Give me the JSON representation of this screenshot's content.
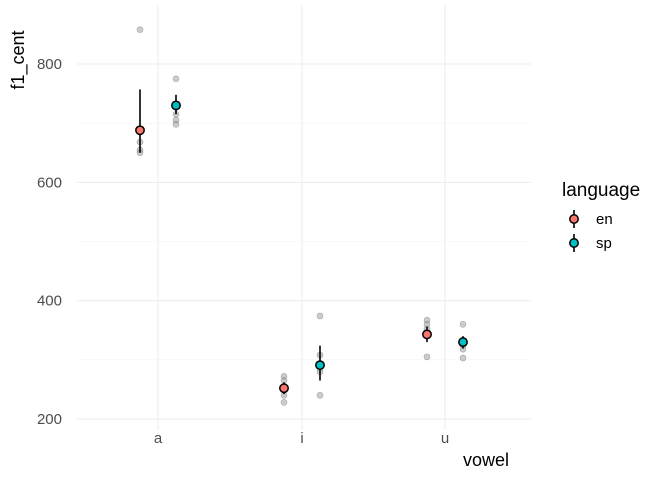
{
  "chart_data": {
    "type": "scatter",
    "title": "",
    "xlabel": "vowel",
    "ylabel": "f1_cent",
    "categories": [
      "a",
      "i",
      "u"
    ],
    "yticks": [
      200,
      400,
      600,
      800
    ],
    "ylim": [
      195,
      890
    ],
    "grid": true,
    "legend": {
      "title": "language",
      "position": "right"
    },
    "series": [
      {
        "name": "en",
        "color": "#F8766D",
        "means": [
          688,
          252,
          343
        ],
        "error_low": [
          650,
          242,
          330
        ],
        "error_high": [
          757,
          262,
          356
        ],
        "raw": [
          [
            858,
            668,
            655,
            650
          ],
          [
            272,
            265,
            255,
            240,
            228
          ],
          [
            367,
            360,
            352,
            305
          ]
        ]
      },
      {
        "name": "sp",
        "color": "#00BFC4",
        "means": [
          730,
          291,
          330
        ],
        "error_low": [
          715,
          265,
          319
        ],
        "error_high": [
          748,
          324,
          340
        ],
        "raw": [
          [
            775,
            715,
            705,
            698
          ],
          [
            374,
            308,
            280,
            240
          ],
          [
            360,
            325,
            318,
            303
          ]
        ]
      }
    ],
    "raw_point_color": "#999999"
  }
}
